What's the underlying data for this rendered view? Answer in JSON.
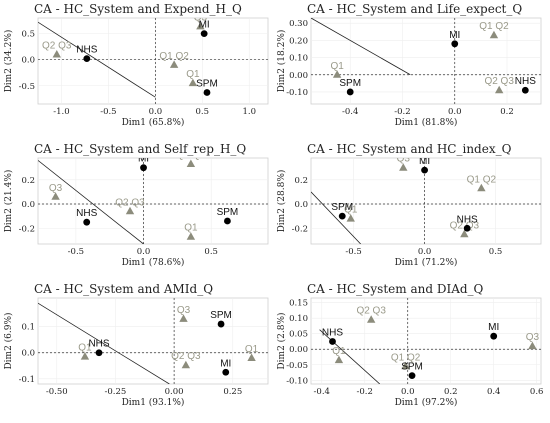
{
  "colors": {
    "row_point": "#000000",
    "col_point": "#8c8c7c",
    "row_label": "#111111",
    "col_label": "#9a9a8a"
  },
  "chart_data": [
    {
      "type": "scatter",
      "title": "CA - HC_System and Expend_H_Q",
      "xlabel": "Dim1 (65.8%)",
      "ylabel": "Dim2 (34.2%)",
      "xlim": [
        -1.25,
        1.2
      ],
      "ylim": [
        -0.85,
        0.8
      ],
      "xticks": [
        -1.0,
        -0.5,
        0.0,
        0.5,
        1.0
      ],
      "xtick_labels": [
        "-1.0",
        "-0.5",
        "0.0",
        "0.5",
        "1.0"
      ],
      "yticks": [
        -0.5,
        0.0,
        0.5
      ],
      "ytick_labels": [
        "-0.5",
        "0.0",
        "0.5"
      ],
      "row_points": [
        {
          "label": "NHS",
          "x": -0.73,
          "y": 0.02
        },
        {
          "label": "MI",
          "x": 0.52,
          "y": 0.5
        },
        {
          "label": "SPM",
          "x": 0.55,
          "y": -0.63
        }
      ],
      "col_points": [
        {
          "label": "Q2 Q3",
          "x": -1.05,
          "y": 0.1
        },
        {
          "label": "Q3",
          "x": 0.48,
          "y": 0.64
        },
        {
          "label": "Q1 Q2",
          "x": 0.2,
          "y": -0.1
        },
        {
          "label": "Q1",
          "x": 0.4,
          "y": -0.45
        }
      ],
      "separator": [
        [
          -1.25,
          0.72
        ],
        [
          0.0,
          -0.72
        ]
      ]
    },
    {
      "type": "scatter",
      "title": "CA - HC_System and Life_expect_Q",
      "xlabel": "Dim1 (81.8%)",
      "ylabel": "Dim2 (18.2%)",
      "xlim": [
        -0.55,
        0.33
      ],
      "ylim": [
        -0.17,
        0.33
      ],
      "xticks": [
        -0.4,
        -0.2,
        0.0,
        0.2
      ],
      "xtick_labels": [
        "-0.4",
        "-0.2",
        "0.0",
        "0.2"
      ],
      "yticks": [
        -0.1,
        0.0,
        0.1,
        0.2,
        0.3
      ],
      "ytick_labels": [
        "-0.10",
        "0.00",
        "0.10",
        "0.20",
        "0.30"
      ],
      "row_points": [
        {
          "label": "MI",
          "x": 0.0,
          "y": 0.18
        },
        {
          "label": "SPM",
          "x": -0.4,
          "y": -0.1
        },
        {
          "label": "NHS",
          "x": 0.27,
          "y": -0.09
        }
      ],
      "col_points": [
        {
          "label": "Q1 Q2",
          "x": 0.15,
          "y": 0.23
        },
        {
          "label": "Q1",
          "x": -0.45,
          "y": 0.0
        },
        {
          "label": "Q2 Q3",
          "x": 0.17,
          "y": -0.09
        }
      ],
      "separator": [
        [
          -0.55,
          0.33
        ],
        [
          -0.17,
          0.0
        ]
      ]
    },
    {
      "type": "scatter",
      "title": "CA - HC_System and Self_rep_H_Q",
      "xlabel": "Dim1 (78.6%)",
      "ylabel": "Dim2 (21.4%)",
      "xlim": [
        -0.78,
        0.92
      ],
      "ylim": [
        -0.33,
        0.38
      ],
      "xticks": [
        -0.5,
        0.0,
        0.5
      ],
      "xtick_labels": [
        "-0.5",
        "0.0",
        "0.5"
      ],
      "yticks": [
        -0.2,
        0.0,
        0.2
      ],
      "ytick_labels": [
        "-0.2",
        "0.0",
        "0.2"
      ],
      "row_points": [
        {
          "label": "MI",
          "x": 0.0,
          "y": 0.3
        },
        {
          "label": "NHS",
          "x": -0.42,
          "y": -0.15
        },
        {
          "label": "SPM",
          "x": 0.62,
          "y": -0.14
        }
      ],
      "col_points": [
        {
          "label": "Q1 Q2",
          "x": 0.35,
          "y": 0.33
        },
        {
          "label": "Q3",
          "x": -0.65,
          "y": 0.06
        },
        {
          "label": "Q2 Q3",
          "x": -0.1,
          "y": -0.06
        },
        {
          "label": "Q1",
          "x": 0.35,
          "y": -0.27
        }
      ],
      "separator": [
        [
          -0.78,
          0.36
        ],
        [
          0.0,
          -0.33
        ]
      ]
    },
    {
      "type": "scatter",
      "title": "CA - HC_System and HC_index_Q",
      "xlabel": "Dim1 (71.2%)",
      "ylabel": "Dim2 (28.8%)",
      "xlim": [
        -0.8,
        0.82
      ],
      "ylim": [
        -0.33,
        0.38
      ],
      "xticks": [
        -0.5,
        0.0,
        0.5
      ],
      "xtick_labels": [
        "-0.5",
        "0.0",
        "0.5"
      ],
      "yticks": [
        -0.2,
        0.0,
        0.2
      ],
      "ytick_labels": [
        "-0.2",
        "0.0",
        "0.2"
      ],
      "row_points": [
        {
          "label": "MI",
          "x": 0.0,
          "y": 0.28
        },
        {
          "label": "SPM",
          "x": -0.58,
          "y": -0.1
        },
        {
          "label": "NHS",
          "x": 0.3,
          "y": -0.2
        }
      ],
      "col_points": [
        {
          "label": "Q3",
          "x": -0.15,
          "y": 0.3
        },
        {
          "label": "Q1 Q2",
          "x": 0.4,
          "y": 0.13
        },
        {
          "label": "Q1",
          "x": -0.52,
          "y": -0.12
        },
        {
          "label": "Q2 Q3",
          "x": 0.28,
          "y": -0.25
        }
      ],
      "separator": [
        [
          -0.8,
          0.1
        ],
        [
          -0.45,
          -0.33
        ]
      ]
    },
    {
      "type": "scatter",
      "title": "CA - HC_System and AMId_Q",
      "xlabel": "Dim1 (93.1%)",
      "ylabel": "Dim2 (6.9%)",
      "xlim": [
        -0.58,
        0.4
      ],
      "ylim": [
        -0.12,
        0.21
      ],
      "xticks": [
        -0.5,
        -0.25,
        0.0,
        0.25
      ],
      "xtick_labels": [
        "-0.50",
        "-0.25",
        "0.00",
        "0.25"
      ],
      "yticks": [
        -0.1,
        0.0,
        0.1
      ],
      "ytick_labels": [
        "-0.1",
        "0.0",
        "0.1"
      ],
      "row_points": [
        {
          "label": "SPM",
          "x": 0.2,
          "y": 0.11
        },
        {
          "label": "NHS",
          "x": -0.32,
          "y": 0.0
        },
        {
          "label": "MI",
          "x": 0.22,
          "y": -0.075
        }
      ],
      "col_points": [
        {
          "label": "Q3",
          "x": 0.04,
          "y": 0.13
        },
        {
          "label": "Q1",
          "x": -0.38,
          "y": -0.015
        },
        {
          "label": "Q2 Q3",
          "x": 0.05,
          "y": -0.048
        },
        {
          "label": "Q1",
          "x": 0.33,
          "y": -0.02
        }
      ],
      "separator": [
        [
          -0.58,
          0.19
        ],
        [
          -0.02,
          -0.12
        ]
      ]
    },
    {
      "type": "scatter",
      "title": "CA - HC_System and DIAd_Q",
      "xlabel": "Dim1 (97.2%)",
      "ylabel": "Dim2 (2.8%)",
      "xlim": [
        -0.45,
        0.62
      ],
      "ylim": [
        -0.112,
        0.165
      ],
      "xticks": [
        -0.4,
        -0.2,
        0.0,
        0.2,
        0.4,
        0.6
      ],
      "xtick_labels": [
        "-0.4",
        "-0.2",
        "0.0",
        "0.2",
        "0.4",
        "0.6"
      ],
      "yticks": [
        -0.1,
        -0.05,
        0.0,
        0.05,
        0.1,
        0.15
      ],
      "ytick_labels": [
        "-0.10",
        "-0.05",
        "0.00",
        "0.05",
        "0.10",
        "0.15"
      ],
      "row_points": [
        {
          "label": "MI",
          "x": 0.4,
          "y": 0.042
        },
        {
          "label": "NHS",
          "x": -0.35,
          "y": 0.025
        },
        {
          "label": "SPM",
          "x": 0.02,
          "y": -0.085
        }
      ],
      "col_points": [
        {
          "label": "Q2 Q3",
          "x": -0.17,
          "y": 0.095
        },
        {
          "label": "Q3",
          "x": 0.58,
          "y": 0.01
        },
        {
          "label": "Q1",
          "x": -0.32,
          "y": -0.035
        },
        {
          "label": "Q1 Q2",
          "x": -0.01,
          "y": -0.055
        }
      ],
      "separator": [
        [
          -0.41,
          0.063
        ],
        [
          -0.13,
          -0.112
        ]
      ]
    }
  ]
}
